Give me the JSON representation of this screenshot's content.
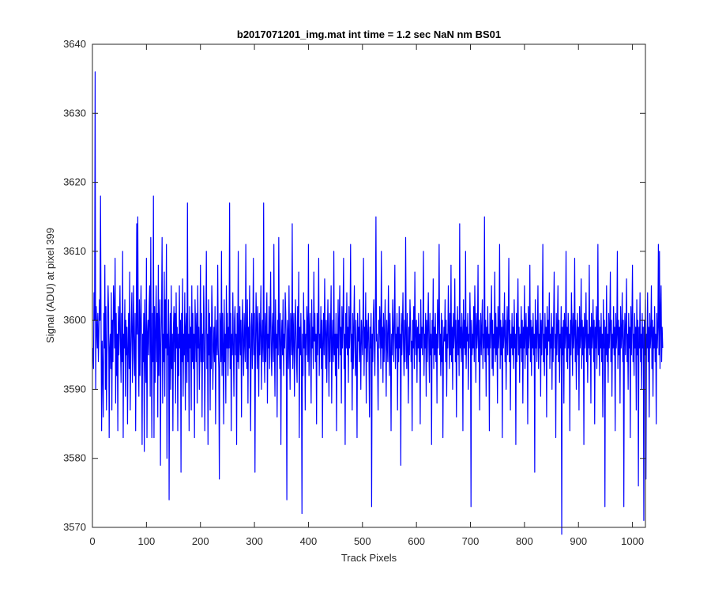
{
  "chart_data": {
    "type": "line",
    "title": "b2017071201_img.mat int time = 1.2 sec  NaN nm BS01",
    "xlabel": "Track Pixels",
    "ylabel": "Signal (ADU) at pixel 399",
    "xlim": [
      0,
      1024
    ],
    "ylim": [
      3570,
      3640
    ],
    "x_ticks": [
      0,
      100,
      200,
      300,
      400,
      500,
      600,
      700,
      800,
      900,
      1000
    ],
    "y_ticks": [
      3570,
      3580,
      3590,
      3600,
      3610,
      3620,
      3630,
      3640
    ],
    "grid": false,
    "legend": "none",
    "series": [
      {
        "color": "#0000ff",
        "x_start": 1,
        "x_step": 1,
        "values": [
          3596,
          3593,
          3604,
          3600,
          3636,
          3590,
          3602,
          3599,
          3596,
          3601,
          3594,
          3598,
          3603,
          3600,
          3618,
          3599,
          3584,
          3597,
          3593,
          3586,
          3601,
          3596,
          3608,
          3590,
          3602,
          3587,
          3595,
          3599,
          3605,
          3601,
          3583,
          3596,
          3598,
          3593,
          3604,
          3587,
          3600,
          3594,
          3605,
          3602,
          3596,
          3609,
          3588,
          3601,
          3592,
          3598,
          3584,
          3602,
          3595,
          3599,
          3605,
          3596,
          3591,
          3601,
          3594,
          3610,
          3583,
          3598,
          3596,
          3603,
          3589,
          3600,
          3595,
          3599,
          3585,
          3596,
          3601,
          3593,
          3607,
          3587,
          3595,
          3600,
          3604,
          3591,
          3598,
          3605,
          3595,
          3592,
          3601,
          3584,
          3597,
          3614,
          3598,
          3615,
          3596,
          3589,
          3603,
          3592,
          3600,
          3605,
          3596,
          3582,
          3598,
          3594,
          3601,
          3581,
          3603,
          3596,
          3591,
          3609,
          3583,
          3598,
          3600,
          3595,
          3602,
          3605,
          3589,
          3612,
          3596,
          3583,
          3601,
          3594,
          3618,
          3583,
          3602,
          3591,
          3598,
          3605,
          3594,
          3601,
          3586,
          3608,
          3592,
          3599,
          3603,
          3579,
          3596,
          3601,
          3612,
          3588,
          3598,
          3594,
          3607,
          3589,
          3603,
          3596,
          3611,
          3580,
          3598,
          3595,
          3603,
          3574,
          3596,
          3601,
          3590,
          3605,
          3593,
          3598,
          3584,
          3599,
          3602,
          3594,
          3601,
          3588,
          3604,
          3596,
          3599,
          3584,
          3598,
          3592,
          3605,
          3596,
          3600,
          3578,
          3601,
          3594,
          3606,
          3589,
          3598,
          3595,
          3604,
          3587,
          3599,
          3601,
          3591,
          3617,
          3594,
          3598,
          3584,
          3602,
          3596,
          3599,
          3587,
          3605,
          3594,
          3601,
          3593,
          3598,
          3583,
          3603,
          3599,
          3594,
          3601,
          3588,
          3605,
          3596,
          3599,
          3590,
          3596,
          3608,
          3594,
          3601,
          3586,
          3598,
          3594,
          3605,
          3600,
          3584,
          3596,
          3599,
          3610,
          3593,
          3598,
          3582,
          3603,
          3595,
          3601,
          3587,
          3599,
          3593,
          3605,
          3601,
          3590,
          3596,
          3599,
          3594,
          3602,
          3585,
          3597,
          3600,
          3595,
          3608,
          3596,
          3593,
          3577,
          3601,
          3599,
          3594,
          3610,
          3592,
          3601,
          3596,
          3585,
          3603,
          3594,
          3598,
          3588,
          3605,
          3596,
          3601,
          3592,
          3599,
          3596,
          3617,
          3593,
          3601,
          3584,
          3598,
          3595,
          3604,
          3596,
          3589,
          3600,
          3602,
          3595,
          3598,
          3582,
          3601,
          3594,
          3610,
          3593,
          3597,
          3602,
          3595,
          3600,
          3586,
          3598,
          3603,
          3596,
          3592,
          3601,
          3597,
          3594,
          3611,
          3598,
          3593,
          3603,
          3588,
          3599,
          3596,
          3605,
          3594,
          3584,
          3599,
          3601,
          3593,
          3598,
          3609,
          3595,
          3601,
          3578,
          3596,
          3604,
          3599,
          3593,
          3602,
          3596,
          3589,
          3601,
          3595,
          3599,
          3605,
          3590,
          3597,
          3600,
          3594,
          3617,
          3596,
          3591,
          3601,
          3594,
          3599,
          3604,
          3588,
          3598,
          3596,
          3602,
          3593,
          3600,
          3607,
          3595,
          3592,
          3599,
          3601,
          3594,
          3611,
          3596,
          3589,
          3603,
          3596,
          3598,
          3586,
          3600,
          3595,
          3612,
          3598,
          3593,
          3601,
          3582,
          3597,
          3600,
          3595,
          3603,
          3592,
          3598,
          3596,
          3604,
          3601,
          3594,
          3574,
          3600,
          3598,
          3593,
          3605,
          3596,
          3590,
          3601,
          3599,
          3595,
          3614,
          3593,
          3598,
          3601,
          3589,
          3596,
          3603,
          3599,
          3594,
          3591,
          3602,
          3596,
          3607,
          3583,
          3599,
          3595,
          3601,
          3594,
          3572,
          3598,
          3592,
          3604,
          3596,
          3600,
          3587,
          3598,
          3595,
          3602,
          3599,
          3594,
          3611,
          3592,
          3598,
          3601,
          3595,
          3588,
          3603,
          3596,
          3599,
          3593,
          3607,
          3597,
          3601,
          3594,
          3598,
          3585,
          3601,
          3595,
          3599,
          3609,
          3592,
          3598,
          3596,
          3602,
          3593,
          3600,
          3583,
          3597,
          3601,
          3595,
          3606,
          3598,
          3593,
          3600,
          3591,
          3598,
          3603,
          3596,
          3589,
          3601,
          3594,
          3599,
          3605,
          3588,
          3597,
          3600,
          3594,
          3610,
          3595,
          3598,
          3592,
          3601,
          3584,
          3598,
          3596,
          3603,
          3593,
          3600,
          3605,
          3595,
          3599,
          3588,
          3602,
          3596,
          3600,
          3609,
          3593,
          3598,
          3582,
          3601,
          3596,
          3604,
          3595,
          3599,
          3591,
          3602,
          3596,
          3599,
          3611,
          3594,
          3598,
          3587,
          3601,
          3593,
          3599,
          3605,
          3596,
          3592,
          3600,
          3594,
          3583,
          3601,
          3597,
          3599,
          3594,
          3603,
          3596,
          3590,
          3600,
          3598,
          3595,
          3601,
          3609,
          3592,
          3599,
          3596,
          3604,
          3588,
          3600,
          3594,
          3598,
          3601,
          3595,
          3586,
          3599,
          3596,
          3601,
          3573,
          3598,
          3594,
          3600,
          3603,
          3596,
          3592,
          3601,
          3615,
          3597,
          3598,
          3594,
          3587,
          3600,
          3596,
          3602,
          3599,
          3593,
          3610,
          3596,
          3599,
          3591,
          3601,
          3594,
          3598,
          3603,
          3596,
          3589,
          3600,
          3597,
          3594,
          3605,
          3599,
          3592,
          3601,
          3596,
          3584,
          3598,
          3595,
          3603,
          3599,
          3594,
          3600,
          3608,
          3593,
          3598,
          3596,
          3601,
          3587,
          3599,
          3594,
          3602,
          3596,
          3598,
          3579,
          3601,
          3595,
          3599,
          3604,
          3596,
          3592,
          3600,
          3594,
          3612,
          3598,
          3593,
          3601,
          3596,
          3588,
          3599,
          3595,
          3603,
          3600,
          3594,
          3597,
          3584,
          3600,
          3596,
          3602,
          3593,
          3607,
          3598,
          3595,
          3600,
          3591,
          3599,
          3596,
          3601,
          3594,
          3598,
          3585,
          3603,
          3596,
          3599,
          3595,
          3600,
          3610,
          3592,
          3598,
          3596,
          3601,
          3589,
          3600,
          3594,
          3599,
          3604,
          3596,
          3591,
          3601,
          3595,
          3598,
          3582,
          3600,
          3596,
          3606,
          3593,
          3599,
          3595,
          3601,
          3594,
          3598,
          3588,
          3603,
          3596,
          3600,
          3611,
          3595,
          3598,
          3592,
          3601,
          3594,
          3600,
          3583,
          3596,
          3599,
          3597,
          3603,
          3594,
          3600,
          3589,
          3598,
          3596,
          3605,
          3599,
          3593,
          3601,
          3595,
          3608,
          3594,
          3599,
          3590,
          3601,
          3596,
          3598,
          3606,
          3594,
          3600,
          3586,
          3597,
          3602,
          3595,
          3600,
          3592,
          3614,
          3596,
          3599,
          3594,
          3601,
          3598,
          3584,
          3603,
          3596,
          3600,
          3595,
          3610,
          3593,
          3599,
          3597,
          3601,
          3590,
          3598,
          3596,
          3604,
          3599,
          3573,
          3600,
          3595,
          3598,
          3596,
          3602,
          3594,
          3605,
          3599,
          3591,
          3601,
          3596,
          3598,
          3608,
          3594,
          3600,
          3587,
          3597,
          3601,
          3595,
          3599,
          3603,
          3593,
          3598,
          3596,
          3615,
          3594,
          3600,
          3589,
          3599,
          3596,
          3602,
          3595,
          3598,
          3584,
          3601,
          3596,
          3599,
          3605,
          3593,
          3600,
          3592,
          3598,
          3596,
          3607,
          3594,
          3601,
          3595,
          3599,
          3588,
          3602,
          3596,
          3598,
          3611,
          3593,
          3600,
          3595,
          3599,
          3583,
          3601,
          3596,
          3598,
          3604,
          3594,
          3600,
          3590,
          3597,
          3602,
          3595,
          3599,
          3609,
          3594,
          3600,
          3587,
          3598,
          3596,
          3601,
          3595,
          3599,
          3593,
          3603,
          3596,
          3598,
          3582,
          3601,
          3594,
          3600,
          3606,
          3595,
          3599,
          3591,
          3598,
          3596,
          3602,
          3594,
          3600,
          3588,
          3599,
          3596,
          3605,
          3593,
          3598,
          3601,
          3595,
          3599,
          3585,
          3602,
          3596,
          3598,
          3608,
          3594,
          3600,
          3592,
          3599,
          3596,
          3601,
          3595,
          3598,
          3578,
          3603,
          3596,
          3600,
          3594,
          3599,
          3605,
          3593,
          3598,
          3596,
          3601,
          3589,
          3600,
          3595,
          3599,
          3611,
          3594,
          3598,
          3592,
          3601,
          3596,
          3599,
          3586,
          3602,
          3595,
          3600,
          3597,
          3604,
          3593,
          3598,
          3596,
          3601,
          3590,
          3599,
          3594,
          3600,
          3607,
          3596,
          3598,
          3583,
          3601,
          3595,
          3599,
          3605,
          3594,
          3600,
          3591,
          3598,
          3596,
          3602,
          3569,
          3599,
          3595,
          3600,
          3588,
          3601,
          3596,
          3598,
          3610,
          3594,
          3599,
          3593,
          3601,
          3596,
          3598,
          3584,
          3600,
          3595,
          3604,
          3599,
          3592,
          3601,
          3596,
          3598,
          3609,
          3594,
          3600,
          3590,
          3597,
          3601,
          3595,
          3599,
          3587,
          3602,
          3596,
          3598,
          3606,
          3593,
          3600,
          3595,
          3599,
          3582,
          3601,
          3596,
          3598,
          3604,
          3594,
          3600,
          3591,
          3598,
          3596,
          3608,
          3595,
          3599,
          3588,
          3601,
          3596,
          3598,
          3603,
          3594,
          3600,
          3585,
          3599,
          3596,
          3602,
          3593,
          3598,
          3611,
          3595,
          3600,
          3592,
          3599,
          3596,
          3601,
          3594,
          3598,
          3586,
          3603,
          3596,
          3600,
          3573,
          3599,
          3595,
          3605,
          3594,
          3598,
          3591,
          3601,
          3596,
          3599,
          3607,
          3594,
          3600,
          3589,
          3598,
          3596,
          3602,
          3595,
          3599,
          3584,
          3601,
          3596,
          3598,
          3610,
          3593,
          3600,
          3595,
          3599,
          3588,
          3602,
          3596,
          3598,
          3604,
          3594,
          3600,
          3573,
          3597,
          3601,
          3595,
          3599,
          3606,
          3594,
          3598,
          3590,
          3601,
          3596,
          3599,
          3583,
          3602,
          3595,
          3600,
          3608,
          3594,
          3598,
          3592,
          3601,
          3596,
          3599,
          3587,
          3603,
          3595,
          3600,
          3576,
          3599,
          3596,
          3604,
          3594,
          3598,
          3590,
          3601,
          3596,
          3599,
          3571,
          3600,
          3595,
          3603,
          3577,
          3598,
          3596,
          3604,
          3594,
          3599,
          3586,
          3601,
          3596,
          3598,
          3605,
          3593,
          3600,
          3589,
          3599,
          3596,
          3602,
          3594,
          3598,
          3585,
          3601,
          3596,
          3599,
          3611,
          3595,
          3610,
          3593,
          3601,
          3605,
          3594,
          3599,
          3596
        ]
      }
    ]
  }
}
